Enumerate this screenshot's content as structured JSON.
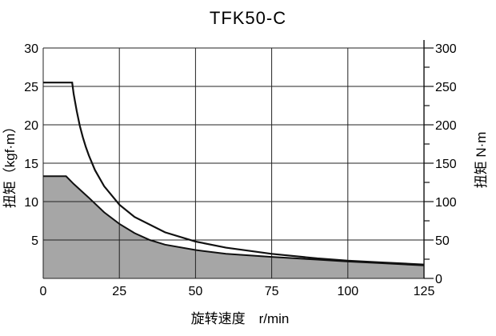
{
  "chart_data": {
    "type": "area",
    "title": "TFK50-C",
    "xlabel": "旋转速度　r/min",
    "ylabel_left": "扭矩（kgf·m）",
    "ylabel_right": "扭矩 N·m",
    "x_ticks": [
      "0",
      "25",
      "50",
      "75",
      "100",
      "125"
    ],
    "y_left_ticks": [
      "5",
      "10",
      "15",
      "20",
      "25",
      "30"
    ],
    "y_right_ticks": [
      "0",
      "50",
      "100",
      "150",
      "200",
      "250",
      "300"
    ],
    "xlim": [
      0,
      125
    ],
    "ylim_left": [
      0,
      30
    ],
    "ylim_right": [
      0,
      300
    ],
    "grid": true,
    "series": [
      {
        "name": "",
        "style": "line",
        "x": [
          0,
          9.5,
          10,
          11,
          12,
          13,
          14,
          15,
          17,
          20,
          25,
          30,
          40,
          50,
          60,
          75,
          90,
          100,
          110,
          125
        ],
        "y": [
          25.5,
          25.5,
          24.0,
          21.8,
          19.9,
          18.4,
          17.1,
          16.0,
          14.1,
          12.0,
          9.6,
          8.0,
          6.0,
          4.8,
          4.0,
          3.2,
          2.6,
          2.3,
          2.1,
          1.8
        ]
      },
      {
        "name": "",
        "style": "area",
        "x": [
          0,
          7.5,
          10,
          15,
          20,
          25,
          30,
          35,
          40,
          50,
          60,
          75,
          90,
          100,
          110,
          125
        ],
        "y": [
          13.3,
          13.3,
          12.3,
          10.5,
          8.6,
          7.1,
          5.9,
          5.0,
          4.4,
          3.7,
          3.2,
          2.8,
          2.45,
          2.2,
          2.0,
          1.7
        ]
      }
    ],
    "colors": {
      "area_fill": "#a6a6a6",
      "line": "#111111",
      "grid": "#222222"
    }
  }
}
